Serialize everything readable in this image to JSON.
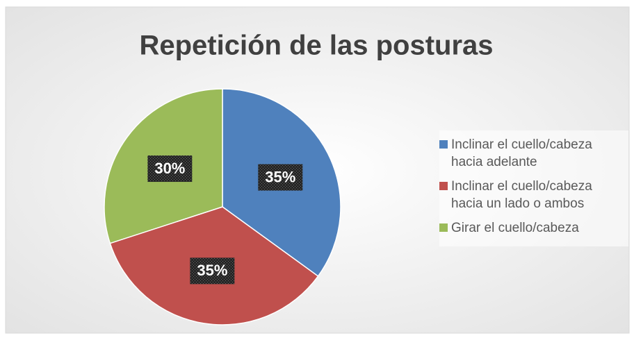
{
  "chart_data": {
    "type": "pie",
    "title": "Repetición de las posturas",
    "categories": [
      "Inclinar el cuello/cabeza hacia adelante",
      "Inclinar el cuello/cabeza hacia un lado o ambos",
      "Girar el cuello/cabeza"
    ],
    "values": [
      35,
      35,
      30
    ],
    "value_labels": [
      "35%",
      "35%",
      "30%"
    ],
    "colors": [
      "#4f81bd",
      "#c0504d",
      "#9bbb59"
    ],
    "legend": "right"
  }
}
